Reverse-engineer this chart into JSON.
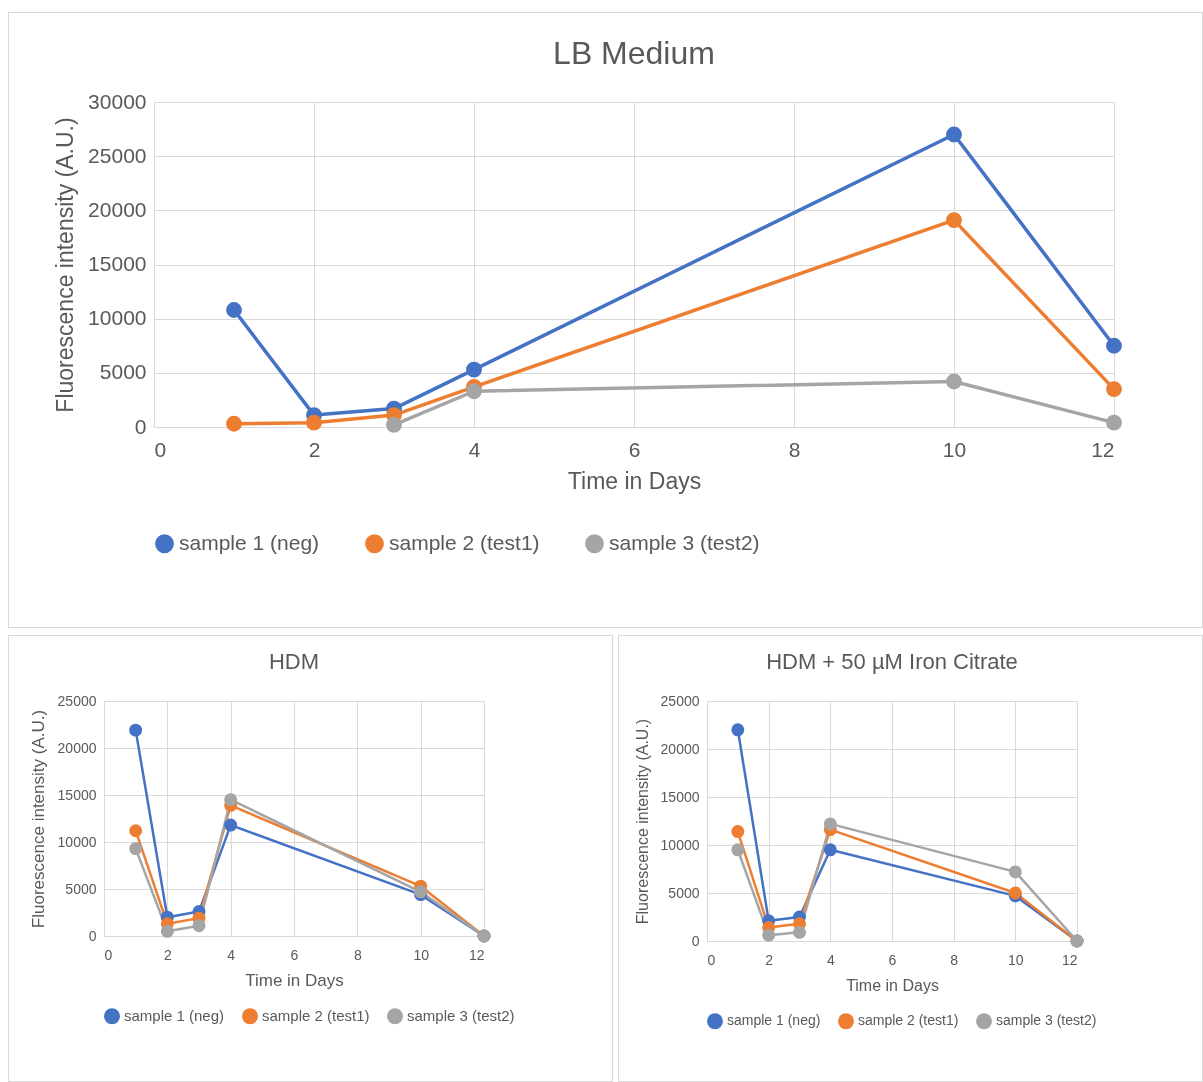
{
  "chart_data": [
    {
      "type": "line",
      "title": "LB Medium",
      "xlabel": "Time in Days",
      "ylabel": "Fluorescence intensity (A.U.)",
      "x": [
        1,
        2,
        3,
        4,
        10,
        12
      ],
      "xlim": [
        0,
        12
      ],
      "xticks": [
        0,
        2,
        4,
        6,
        8,
        10,
        12
      ],
      "ylim": [
        0,
        30000
      ],
      "yticks": [
        0,
        5000,
        10000,
        15000,
        20000,
        25000,
        30000
      ],
      "grid": true,
      "legend": "bottom",
      "marker": "circle",
      "series": [
        {
          "name": "sample 1 (neg)",
          "color": "#4472c4",
          "values": [
            10800,
            1100,
            1700,
            5300,
            27000,
            7500
          ]
        },
        {
          "name": "sample 2 (test1)",
          "color": "#ed7d31",
          "values": [
            300,
            400,
            1100,
            3700,
            19100,
            3500
          ]
        },
        {
          "name": "sample 3 (test2)",
          "color": "#a5a5a5",
          "values": [
            null,
            null,
            200,
            3300,
            4200,
            400
          ]
        }
      ]
    },
    {
      "type": "line",
      "title": "HDM",
      "xlabel": "Time in Days",
      "ylabel": "Fluorescence intensity (A.U.)",
      "x": [
        1,
        2,
        3,
        4,
        10,
        12
      ],
      "xlim": [
        0,
        12
      ],
      "xticks": [
        0,
        2,
        4,
        6,
        8,
        10,
        12
      ],
      "ylim": [
        0,
        25000
      ],
      "yticks": [
        0,
        5000,
        10000,
        15000,
        20000,
        25000
      ],
      "grid": true,
      "legend": "bottom",
      "marker": "circle",
      "series": [
        {
          "name": "sample 1 (neg)",
          "color": "#4472c4",
          "values": [
            21900,
            2000,
            2600,
            11800,
            4400,
            0
          ]
        },
        {
          "name": "sample 2 (test1)",
          "color": "#ed7d31",
          "values": [
            11200,
            1300,
            1900,
            13900,
            5300,
            0
          ]
        },
        {
          "name": "sample 3 (test2)",
          "color": "#a5a5a5",
          "values": [
            9300,
            500,
            1100,
            14500,
            4700,
            0
          ]
        }
      ]
    },
    {
      "type": "line",
      "title": "HDM + 50 µM Iron Citrate",
      "xlabel": "Time in Days",
      "ylabel": "Fluorescence intensity (A.U.)",
      "x": [
        1,
        2,
        3,
        4,
        10,
        12
      ],
      "xlim": [
        0,
        12
      ],
      "xticks": [
        0,
        2,
        4,
        6,
        8,
        10,
        12
      ],
      "ylim": [
        0,
        25000
      ],
      "yticks": [
        0,
        5000,
        10000,
        15000,
        20000,
        25000
      ],
      "grid": true,
      "legend": "bottom",
      "marker": "circle",
      "series": [
        {
          "name": "sample 1 (neg)",
          "color": "#4472c4",
          "values": [
            22000,
            2100,
            2500,
            9500,
            4700,
            0
          ]
        },
        {
          "name": "sample 2 (test1)",
          "color": "#ed7d31",
          "values": [
            11400,
            1400,
            1800,
            11600,
            5000,
            0
          ]
        },
        {
          "name": "sample 3 (test2)",
          "color": "#a5a5a5",
          "values": [
            9500,
            600,
            900,
            12200,
            7200,
            0
          ]
        }
      ]
    }
  ]
}
